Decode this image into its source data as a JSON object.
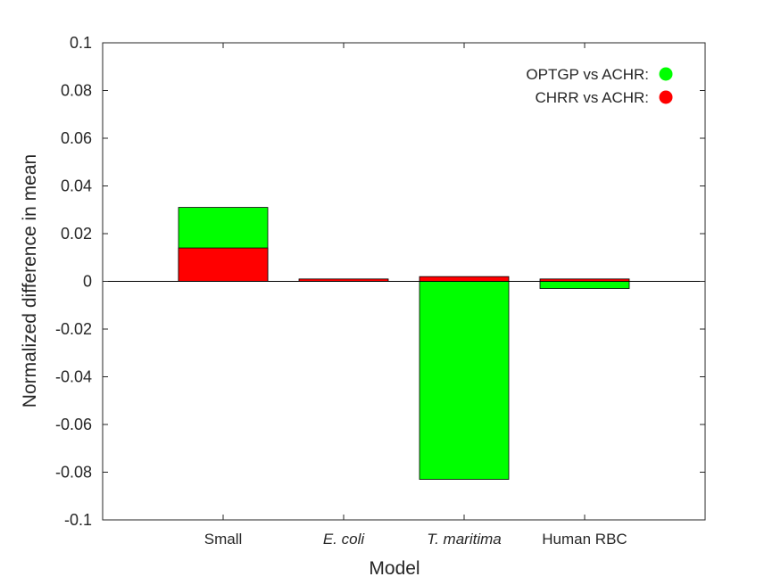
{
  "chart_data": {
    "type": "bar",
    "stacked": true,
    "categories": [
      "Small",
      "E. coli",
      "T. maritima",
      "Human RBC"
    ],
    "category_italic": [
      false,
      true,
      true,
      false
    ],
    "series": [
      {
        "name": "OPTGP vs ACHR:",
        "color": "#00ff00",
        "values": [
          0.031,
          0.0,
          -0.083,
          -0.003
        ]
      },
      {
        "name": "CHRR vs ACHR:",
        "color": "#ff0000",
        "values": [
          0.014,
          0.001,
          0.002,
          0.001
        ]
      }
    ],
    "xlabel": "Model",
    "ylabel": "Normalized difference in mean",
    "ylim": [
      -0.1,
      0.1
    ],
    "yticks": [
      -0.1,
      -0.08,
      -0.06,
      -0.04,
      -0.02,
      0,
      0.02,
      0.04,
      0.06,
      0.08,
      0.1
    ],
    "ytick_labels": [
      "-0.1",
      "-0.08",
      "-0.06",
      "-0.04",
      "-0.02",
      "0",
      "0.02",
      "0.04",
      "0.06",
      "0.08",
      "0.1"
    ],
    "grid": false,
    "legend_position": "top-right"
  }
}
